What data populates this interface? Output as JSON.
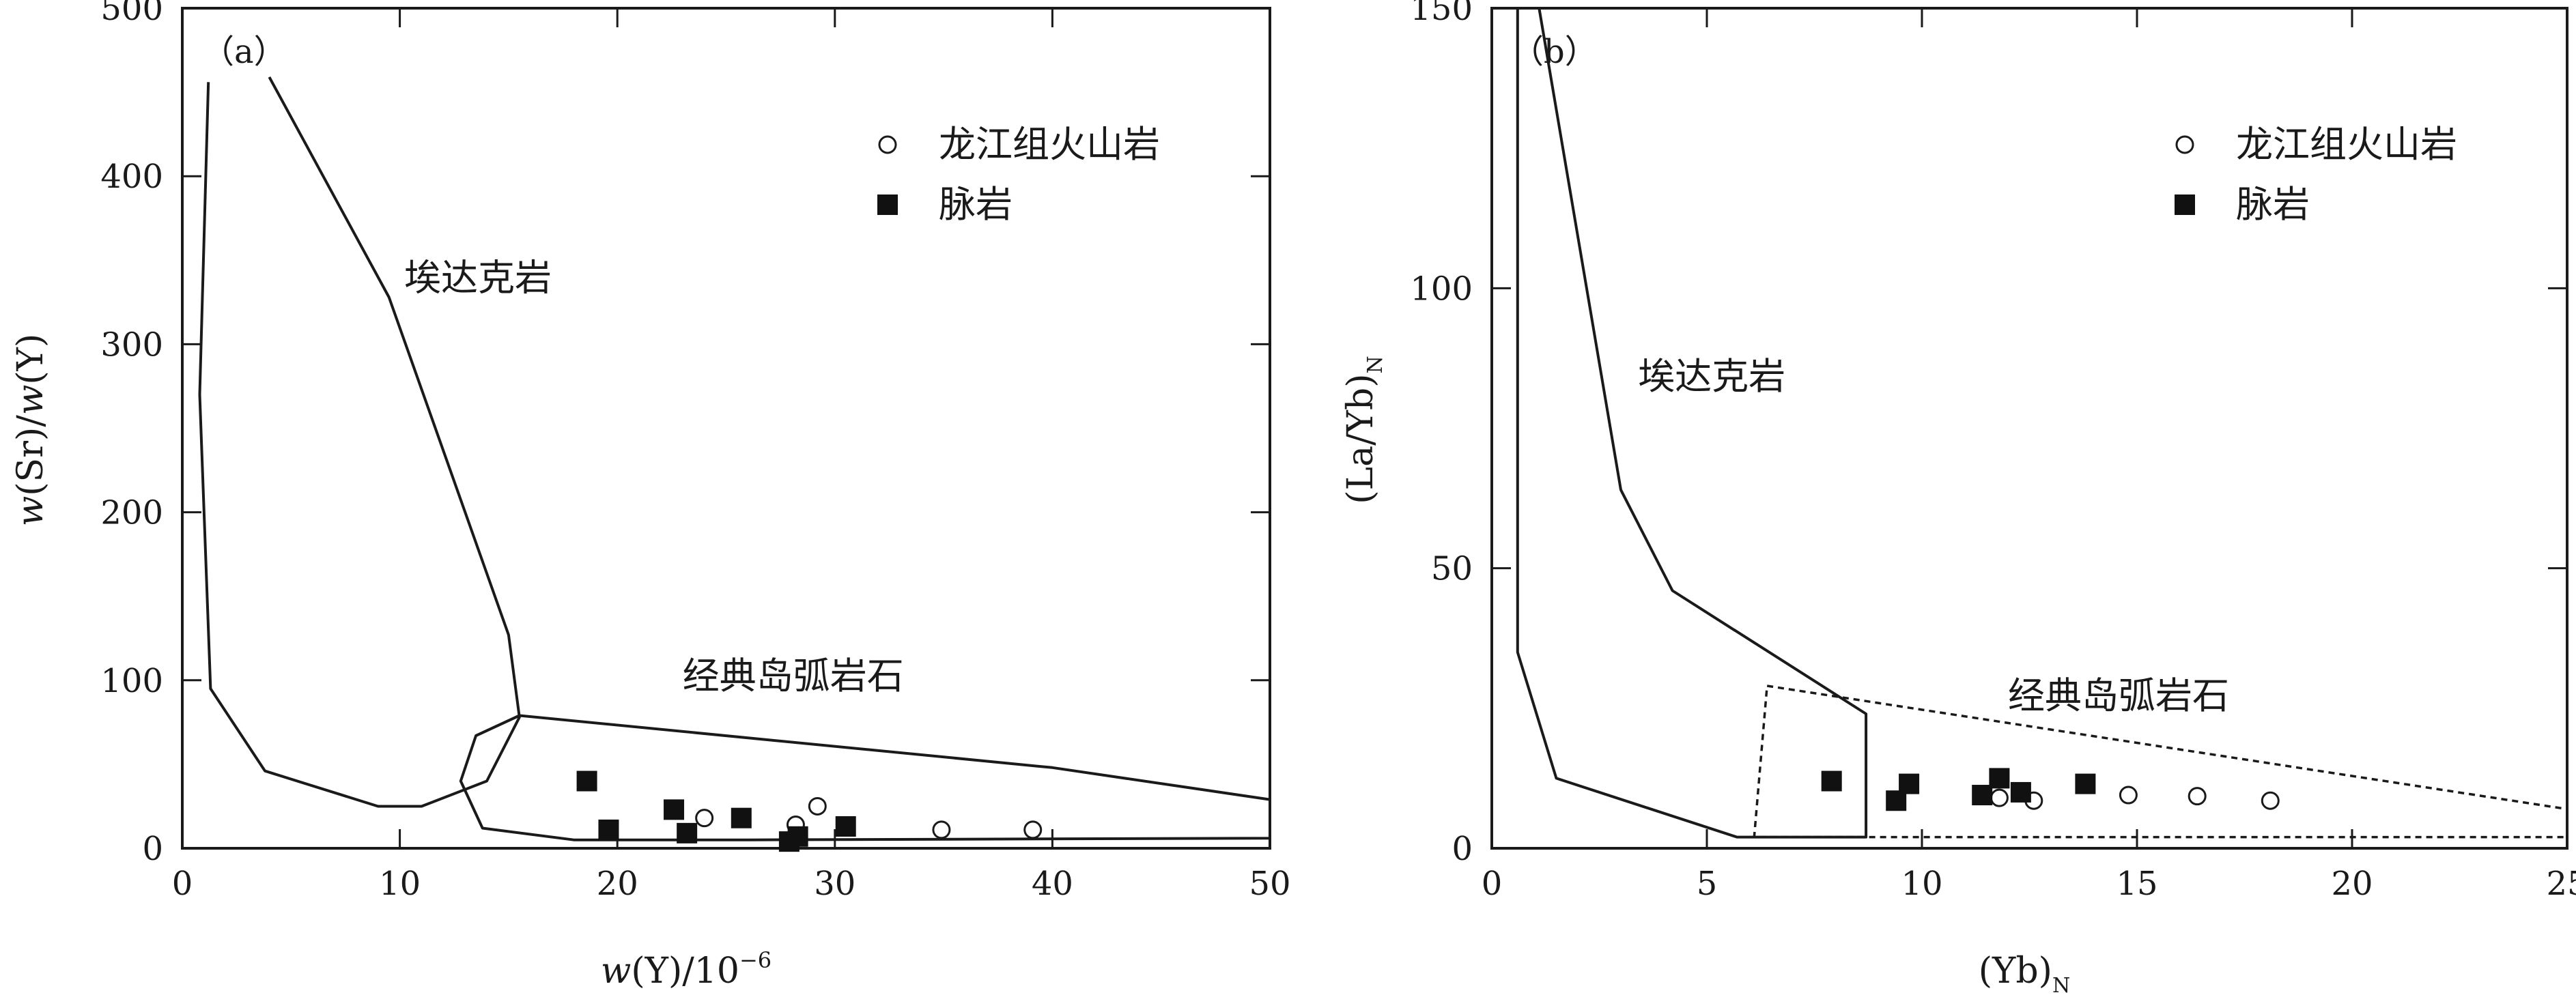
{
  "chart_data": [
    {
      "type": "scatter",
      "panel_label": "（a）",
      "xlabel_parts": {
        "pre": "w",
        "mid": "(Y)/10",
        "sup": "−6"
      },
      "ylabel_parts": {
        "a": "w",
        "b": "(Sr)/",
        "c": "w",
        "d": "(Y)"
      },
      "xlim": [
        0,
        50
      ],
      "ylim": [
        0,
        500
      ],
      "x_ticks": [
        0,
        10,
        20,
        30,
        40,
        50
      ],
      "y_ticks": [
        0,
        100,
        200,
        300,
        400,
        500
      ],
      "x_tick_labels": [
        "0",
        "10",
        "20",
        "30",
        "40",
        "50"
      ],
      "y_tick_labels": [
        "0",
        "100",
        "200",
        "300",
        "400",
        "500"
      ],
      "legend": {
        "position": "top-right",
        "items": [
          {
            "label": "龙江组火山岩",
            "marker": "open-circle"
          },
          {
            "label": "脉岩",
            "marker": "filled-square"
          }
        ]
      },
      "regions": [
        {
          "label": "埃达克岩",
          "label_at": [
            10.2,
            332
          ],
          "style": "solid",
          "polyline": [
            [
              1.2,
              456
            ],
            [
              0.8,
              270
            ],
            [
              1.3,
              95
            ],
            [
              3.8,
              46
            ],
            [
              9,
              25
            ],
            [
              11,
              25
            ],
            [
              14,
              40
            ],
            [
              15.5,
              78
            ],
            [
              15,
              127
            ],
            [
              9.5,
              328
            ],
            [
              4,
              459
            ]
          ]
        },
        {
          "label": "经典岛弧岩石",
          "label_at": [
            23,
            95
          ],
          "style": "solid",
          "polyline": [
            [
              15.5,
              79
            ],
            [
              40,
              48
            ],
            [
              50,
              29
            ],
            [
              50,
              6
            ],
            [
              26,
              5
            ],
            [
              18,
              5
            ],
            [
              13.8,
              12
            ],
            [
              12.8,
              40
            ],
            [
              13.5,
              67
            ],
            [
              15.5,
              79
            ]
          ]
        }
      ],
      "series": [
        {
          "name": "龙江组火山岩",
          "marker": "open-circle",
          "x": [
            24,
            28.2,
            29.2,
            34.9,
            39.1
          ],
          "y": [
            18,
            14,
            25,
            11,
            11
          ]
        },
        {
          "name": "脉岩",
          "marker": "filled-square",
          "x": [
            18.6,
            19.6,
            22.6,
            23.2,
            25.7,
            27.9,
            28.3,
            30.5
          ],
          "y": [
            40,
            11,
            23,
            9,
            18,
            4,
            7,
            13
          ]
        }
      ]
    },
    {
      "type": "scatter",
      "panel_label": "（b）",
      "xlabel_parts": {
        "pre": "(Yb)",
        "sub": "N"
      },
      "ylabel_parts": {
        "pre": "(La/Yb)",
        "sub": "N"
      },
      "xlim": [
        0,
        25
      ],
      "ylim": [
        0,
        150
      ],
      "x_ticks": [
        0,
        5,
        10,
        15,
        20,
        25
      ],
      "y_ticks": [
        0,
        50,
        100,
        150
      ],
      "x_tick_labels": [
        "0",
        "5",
        "10",
        "15",
        "20",
        "25"
      ],
      "y_tick_labels": [
        "0",
        "50",
        "100",
        "150"
      ],
      "legend": {
        "position": "top-right",
        "items": [
          {
            "label": "龙江组火山岩",
            "marker": "open-circle"
          },
          {
            "label": "脉岩",
            "marker": "filled-square"
          }
        ]
      },
      "regions": [
        {
          "label": "埃达克岩",
          "label_at": [
            3.4,
            82
          ],
          "style": "solid",
          "polyline": [
            [
              1.1,
              150
            ],
            [
              3,
              64
            ],
            [
              4.2,
              46
            ],
            [
              8.7,
              24
            ],
            [
              8.7,
              2
            ],
            [
              5.7,
              2
            ],
            [
              1.5,
              12.5
            ],
            [
              0.6,
              35
            ],
            [
              0.6,
              150
            ]
          ]
        },
        {
          "label": "经典岛弧岩石",
          "label_at": [
            12,
            25
          ],
          "style": "dashed",
          "polyline": [
            [
              6.4,
              29
            ],
            [
              25,
              7
            ],
            [
              25,
              2
            ],
            [
              6.1,
              2
            ],
            [
              6.4,
              29
            ]
          ]
        }
      ],
      "series": [
        {
          "name": "龙江组火山岩",
          "marker": "open-circle",
          "x": [
            11.8,
            12.6,
            14.8,
            16.4,
            18.1
          ],
          "y": [
            9,
            8.5,
            9.5,
            9.3,
            8.5
          ]
        },
        {
          "name": "脉岩",
          "marker": "filled-square",
          "x": [
            7.9,
            9.4,
            9.7,
            11.4,
            11.8,
            12.3,
            13.8
          ],
          "y": [
            12,
            8.5,
            11.5,
            9.5,
            12.5,
            10,
            11.5
          ]
        }
      ]
    }
  ]
}
